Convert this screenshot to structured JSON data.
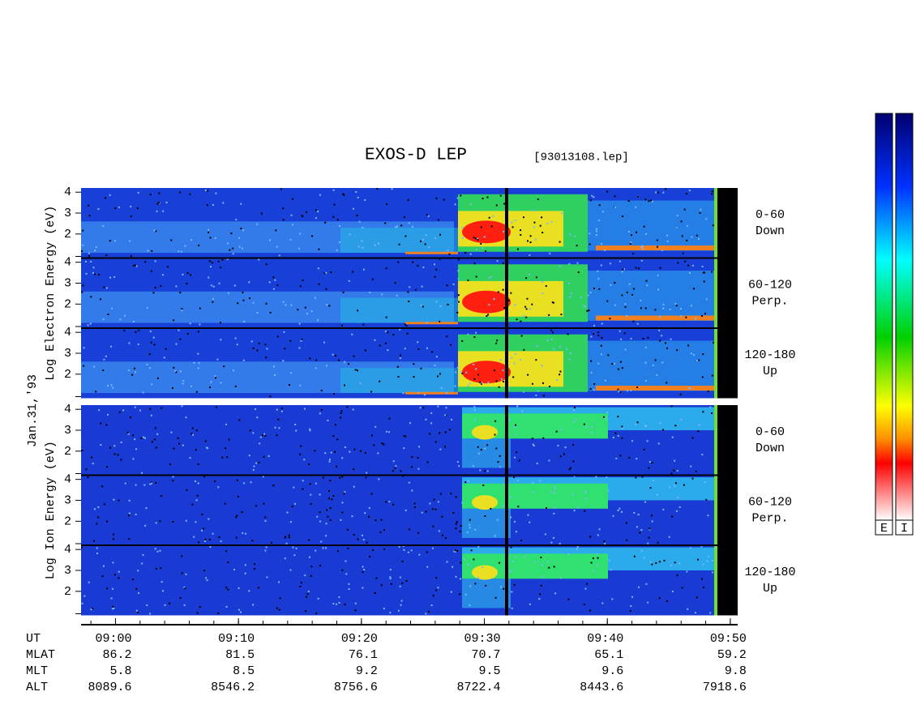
{
  "chart_data": {
    "type": "spectrogram",
    "title": "EXOS-D LEP",
    "subtitle": "[93013108.lep]",
    "date": "Jan.31,'93",
    "x_label": "UT",
    "xlim": [
      537.2,
      590.6
    ],
    "xticks": [
      {
        "value": 540,
        "label": "09:00"
      },
      {
        "value": 550,
        "label": "09:10"
      },
      {
        "value": 560,
        "label": "09:20"
      },
      {
        "value": 570,
        "label": "09:30"
      },
      {
        "value": 580,
        "label": "09:40"
      },
      {
        "value": 590,
        "label": "09:50"
      }
    ],
    "ephemeris": [
      {
        "name": "MLAT",
        "values": [
          86.2,
          81.5,
          76.1,
          70.7,
          65.1,
          59.2
        ]
      },
      {
        "name": "MLT",
        "values": [
          5.8,
          8.5,
          9.2,
          9.5,
          9.6,
          9.8
        ]
      },
      {
        "name": "ALT",
        "values": [
          8089.6,
          8546.2,
          8756.6,
          8722.4,
          8443.6,
          7918.6
        ]
      }
    ],
    "groups": [
      {
        "ylabel": "Log Electron Energy (eV)",
        "panels": [
          {
            "label": "0-60",
            "direction": "Down",
            "ylim": [
              0.85,
              4.2
            ],
            "yticks": [
              2,
              3,
              4
            ]
          },
          {
            "label": "60-120",
            "direction": "Perp.",
            "ylim": [
              0.85,
              4.2
            ],
            "yticks": [
              2,
              3,
              4
            ]
          },
          {
            "label": "120-180",
            "direction": "Up",
            "ylim": [
              0.85,
              4.2
            ],
            "yticks": [
              2,
              3,
              4
            ]
          }
        ]
      },
      {
        "ylabel": "Log Ion Energy (eV)",
        "panels": [
          {
            "label": "0-60",
            "direction": "Down",
            "ylim": [
              0.85,
              4.2
            ],
            "yticks": [
              2,
              3,
              4
            ]
          },
          {
            "label": "60-120",
            "direction": "Perp.",
            "ylim": [
              0.85,
              4.2
            ],
            "yticks": [
              2,
              3,
              4
            ]
          },
          {
            "label": "120-180",
            "direction": "Up",
            "ylim": [
              0.85,
              4.2
            ],
            "yticks": [
              2,
              3,
              4
            ]
          }
        ]
      }
    ],
    "colorbar_labels": [
      "E",
      "I"
    ]
  }
}
